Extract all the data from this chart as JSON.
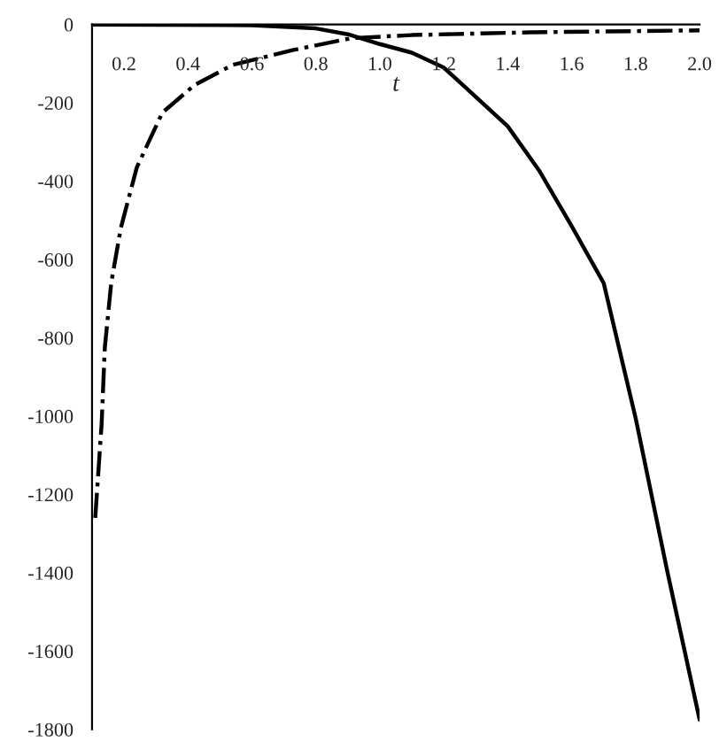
{
  "chart_data": {
    "type": "line",
    "xlabel": "t",
    "xlim": [
      0.1,
      2.0
    ],
    "xticks": [
      0.2,
      0.4,
      0.6,
      0.8,
      {
        "value": 1.0,
        "label": "1.0"
      },
      1.2,
      1.4,
      1.6,
      1.8,
      {
        "value": 2.0,
        "label": "2.0"
      }
    ],
    "ylim": [
      -1800,
      0
    ],
    "yticks": [
      -1800,
      -1600,
      -1400,
      -1200,
      -1000,
      -800,
      -600,
      -400,
      -200,
      0
    ],
    "grid": false,
    "series": [
      {
        "color": "#000000",
        "line_style": "solid",
        "x": [
          0.1,
          0.6,
          0.8,
          0.9,
          1.0,
          1.1,
          1.2,
          1.3,
          1.4,
          1.5,
          1.6,
          1.7,
          1.8,
          1.9,
          2.0
        ],
        "values": [
          0,
          -2,
          -10,
          -25,
          -50,
          -72,
          -110,
          -185,
          -260,
          -375,
          -515,
          -660,
          -1005,
          -1400,
          -1775
        ]
      },
      {
        "color": "#000000",
        "line_style": "dashdot",
        "x": [
          0.11,
          0.13,
          0.14,
          0.16,
          0.19,
          0.24,
          0.32,
          0.42,
          0.54,
          0.73,
          0.91,
          1.1,
          1.47,
          2.0
        ],
        "values": [
          -1260,
          -1020,
          -825,
          -660,
          -520,
          -365,
          -225,
          -155,
          -103,
          -65,
          -35,
          -27,
          -20,
          -15
        ]
      }
    ]
  }
}
